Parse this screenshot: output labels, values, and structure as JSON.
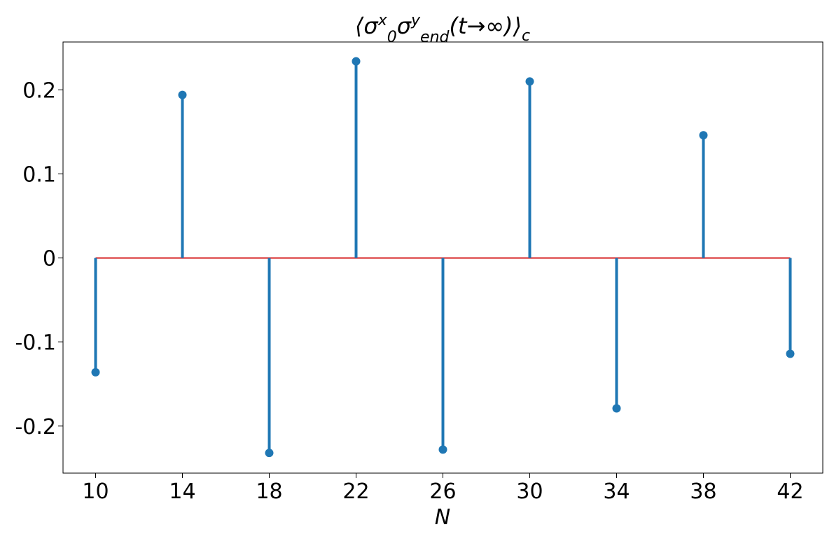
{
  "chart_data": {
    "type": "stem",
    "title": "⟨σ₀ˣσ_endʸ(t→∞)⟩_c",
    "xlabel": "N",
    "ylabel": "",
    "x": [
      10,
      14,
      18,
      22,
      26,
      30,
      34,
      38,
      42
    ],
    "values": [
      -0.136,
      0.194,
      -0.232,
      0.234,
      -0.228,
      0.21,
      -0.179,
      0.146,
      -0.114
    ],
    "xlim": [
      8.5,
      43.5
    ],
    "ylim": [
      -0.256,
      0.257
    ],
    "xticks": [
      10,
      14,
      18,
      22,
      26,
      30,
      34,
      38,
      42
    ],
    "xtick_labels": [
      "10",
      "14",
      "18",
      "22",
      "26",
      "30",
      "34",
      "38",
      "42"
    ],
    "yticks": [
      -0.2,
      -0.1,
      0,
      0.1,
      0.2
    ],
    "ytick_labels": [
      "-0.2",
      "-0.1",
      "0",
      "0.1",
      "0.2"
    ],
    "baseline": 0,
    "grid": false,
    "legend": "none",
    "colors": {
      "stem": "#1f77b4",
      "marker": "#1f77b4",
      "baseline": "#d62728",
      "axes": "#000000"
    }
  }
}
